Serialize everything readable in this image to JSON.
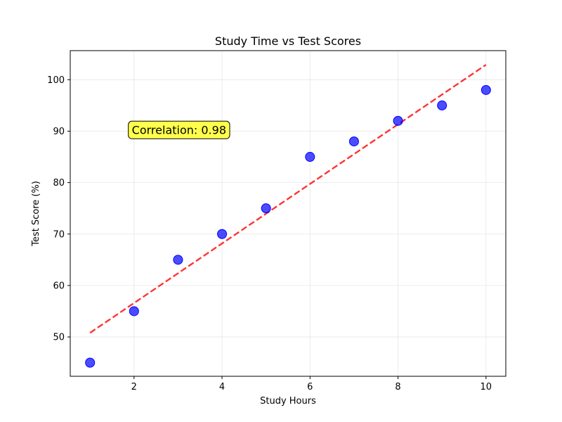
{
  "chart_data": {
    "type": "scatter",
    "title": "Study Time vs Test Scores",
    "xlabel": "Study Hours",
    "ylabel": "Test Score (%)",
    "xlim": [
      0.55,
      10.45
    ],
    "ylim": [
      42.35,
      105.65
    ],
    "xticks": [
      2,
      4,
      6,
      8,
      10
    ],
    "yticks": [
      50,
      60,
      70,
      80,
      90,
      100
    ],
    "grid": true,
    "series": [
      {
        "x": [
          1,
          2,
          3,
          4,
          5,
          6,
          7,
          8,
          9,
          10
        ],
        "y": [
          45,
          55,
          65,
          70,
          75,
          85,
          88,
          92,
          95,
          98
        ],
        "color": "#0000ff",
        "opacity": 0.7
      }
    ],
    "trendline": {
      "x": [
        1,
        10
      ],
      "y": [
        50.8,
        102.9
      ],
      "color": "#ff0000",
      "style": "dashed"
    },
    "annotation": {
      "text": "Correlation: 0.98",
      "x": 1.95,
      "y": 90.3,
      "box_color": "#ffff00"
    }
  }
}
